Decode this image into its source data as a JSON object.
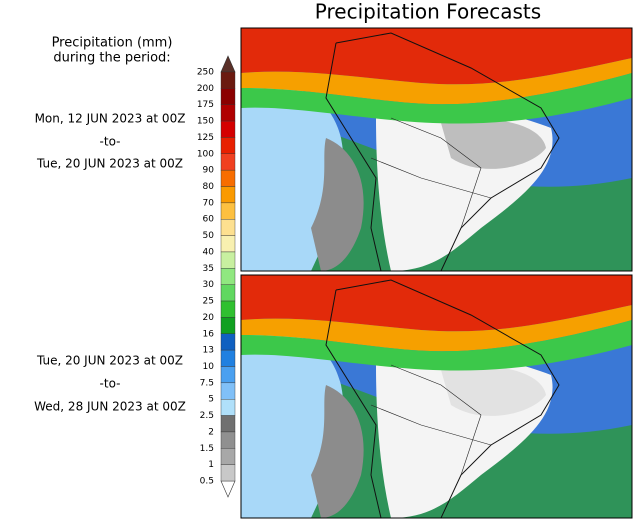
{
  "title": "Precipitation Forecasts",
  "legend": {
    "title": [
      "Precipitation (mm)",
      "during the period:"
    ],
    "levels": [
      250,
      200,
      175,
      150,
      125,
      100,
      90,
      80,
      70,
      60,
      50,
      40,
      35,
      30,
      25,
      20,
      16,
      13,
      10,
      7.5,
      5,
      2.5,
      2,
      1.5,
      1,
      0.5
    ]
  },
  "panels": [
    {
      "period": [
        "Mon, 12 JUN 2023 at 00Z",
        "-to-",
        "Tue, 20 JUN 2023 at 00Z"
      ]
    },
    {
      "period": [
        "Tue, 20 JUN 2023 at 00Z",
        "-to-",
        "Wed, 28 JUN 2023 at 00Z"
      ]
    }
  ]
}
